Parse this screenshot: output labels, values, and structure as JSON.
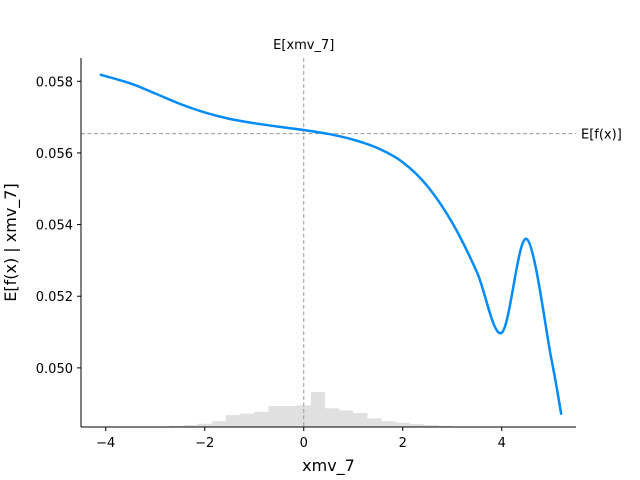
{
  "chart_data": {
    "type": "line",
    "xlabel": "xmv_7",
    "ylabel": "E[f(x) | xmv_7]",
    "xlim": [
      -4.5,
      5.5
    ],
    "ylim": [
      0.04835,
      0.05865
    ],
    "x_ticks": [
      -4,
      -2,
      0,
      2,
      4
    ],
    "x_tick_labels": [
      "−4",
      "−2",
      "0",
      "2",
      "4"
    ],
    "y_ticks": [
      0.05,
      0.052,
      0.054,
      0.056,
      0.058
    ],
    "y_tick_labels": [
      "0.050",
      "0.052",
      "0.054",
      "0.056",
      "0.058"
    ],
    "series": [
      {
        "x": [
          -4.1,
          -3.5,
          -3.0,
          -2.5,
          -2.0,
          -1.5,
          -1.0,
          -0.5,
          0.0,
          0.5,
          1.0,
          1.5,
          2.0,
          2.5,
          3.0,
          3.5,
          4.0,
          4.5,
          5.0,
          5.2
        ],
        "y": [
          0.05818,
          0.05794,
          0.05766,
          0.05737,
          0.05713,
          0.05695,
          0.05683,
          0.05673,
          0.05664,
          0.05653,
          0.05637,
          0.05613,
          0.05574,
          0.05507,
          0.05405,
          0.05267,
          0.05098,
          0.0536,
          0.05027,
          0.04872
        ]
      }
    ],
    "reference_lines": {
      "vertical": {
        "x": 0.0,
        "label": "E[xmv_7]"
      },
      "horizontal": {
        "y": 0.05654,
        "label": "E[f(x)]"
      }
    },
    "histogram": {
      "bin_width": 0.2857,
      "bins": [
        {
          "x0": -3.0,
          "h": 0.01
        },
        {
          "x0": -2.714,
          "h": 0.03
        },
        {
          "x0": -2.429,
          "h": 0.05
        },
        {
          "x0": -2.143,
          "h": 0.09
        },
        {
          "x0": -1.857,
          "h": 0.16
        },
        {
          "x0": -1.571,
          "h": 0.33
        },
        {
          "x0": -1.286,
          "h": 0.37
        },
        {
          "x0": -1.0,
          "h": 0.42
        },
        {
          "x0": -0.714,
          "h": 0.58
        },
        {
          "x0": -0.429,
          "h": 0.58
        },
        {
          "x0": -0.143,
          "h": 0.6
        },
        {
          "x0": 0.143,
          "h": 0.97
        },
        {
          "x0": 0.429,
          "h": 0.52
        },
        {
          "x0": 0.714,
          "h": 0.46
        },
        {
          "x0": 1.0,
          "h": 0.39
        },
        {
          "x0": 1.286,
          "h": 0.24
        },
        {
          "x0": 1.571,
          "h": 0.16
        },
        {
          "x0": 1.857,
          "h": 0.12
        },
        {
          "x0": 2.143,
          "h": 0.08
        },
        {
          "x0": 2.429,
          "h": 0.05
        },
        {
          "x0": 2.714,
          "h": 0.03
        },
        {
          "x0": 3.0,
          "h": 0.01
        }
      ]
    },
    "grid": false,
    "colors": {
      "line": "#008bfb",
      "histogram": "#cccccc",
      "reference": "#999999"
    }
  }
}
